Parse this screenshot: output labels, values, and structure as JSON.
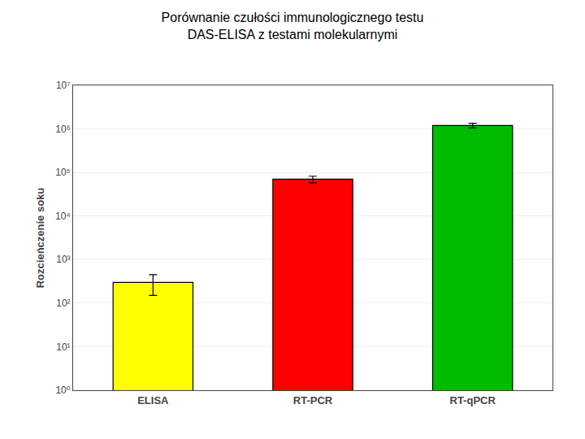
{
  "chart_data": {
    "type": "bar",
    "title": "Porównanie czułości immunologicznego testu\nDAS-ELISA z testami molekularnymi",
    "categories": [
      "ELISA",
      "RT-PCR",
      "RT-qPCR"
    ],
    "values": [
      300,
      70000,
      1200000
    ],
    "errors": [
      150,
      12000,
      150000
    ],
    "colors": [
      "#FFFF00",
      "#FF0000",
      "#00BB00"
    ],
    "ylabel": "Rozcieńczenie soku",
    "log": "y",
    "ylim": [
      1,
      10000000
    ],
    "yticks": [
      {
        "value": 1,
        "label": "10⁰"
      },
      {
        "value": 10,
        "label": "10¹"
      },
      {
        "value": 100,
        "label": "10²"
      },
      {
        "value": 1000,
        "label": "10³"
      },
      {
        "value": 10000,
        "label": "10⁴"
      },
      {
        "value": 100000,
        "label": "10⁵"
      },
      {
        "value": 1000000,
        "label": "10⁶"
      },
      {
        "value": 10000000,
        "label": "10⁷"
      }
    ],
    "grid": true
  }
}
